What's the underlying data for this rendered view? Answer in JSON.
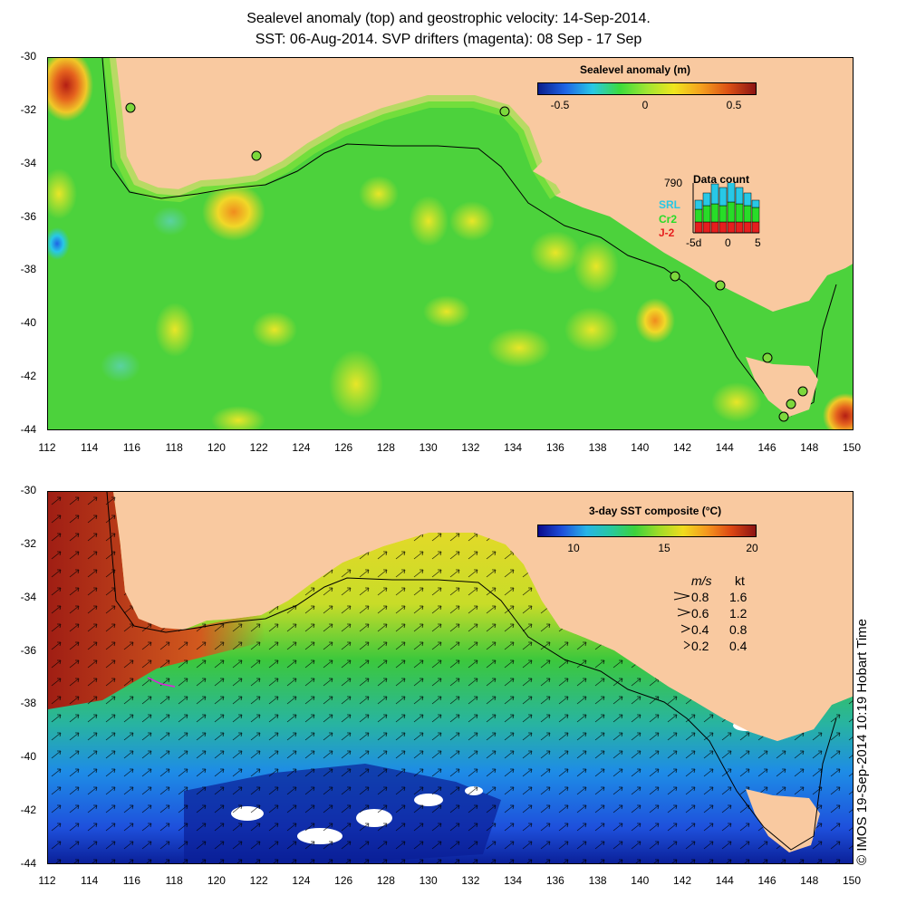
{
  "title": {
    "line1": "Sealevel anomaly (top) and geostrophic velocity: 14-Sep-2014.",
    "line2": "SST: 06-Aug-2014. SVP drifters (magenta): 08 Sep - 17 Sep"
  },
  "axes": {
    "y_ticks": [
      "-30",
      "-32",
      "-34",
      "-36",
      "-38",
      "-40",
      "-42",
      "-44"
    ],
    "x_ticks": [
      "112",
      "114",
      "116",
      "118",
      "120",
      "122",
      "124",
      "126",
      "128",
      "130",
      "132",
      "134",
      "136",
      "138",
      "140",
      "142",
      "144",
      "146",
      "148",
      "150"
    ]
  },
  "top_panel": {
    "colorbar_title": "Sealevel anomaly (m)",
    "colorbar_ticks": [
      "-0.5",
      "0",
      "0.5"
    ],
    "colors": [
      "#0a1e8c",
      "#1e64e6",
      "#28c8e6",
      "#3cdc3c",
      "#a0e632",
      "#f0e61e",
      "#f5a01e",
      "#dc5014",
      "#8c1414"
    ],
    "data_count": {
      "title": "Data count",
      "max": "790",
      "items": [
        {
          "label": "SRL",
          "color": "#28c8e6"
        },
        {
          "label": "Cr2",
          "color": "#28dc28"
        },
        {
          "label": "J-2",
          "color": "#e61e1e"
        }
      ],
      "x_ticks": [
        "-5d",
        "0",
        "5"
      ]
    }
  },
  "bottom_panel": {
    "colorbar_title": "3-day SST composite (°C)",
    "colorbar_ticks": [
      "10",
      "15",
      "20"
    ],
    "colors": [
      "#0a0a8c",
      "#1e50dc",
      "#28b4e6",
      "#28c8a0",
      "#3cd23c",
      "#a0dc28",
      "#f0dc1e",
      "#f5961e",
      "#dc4614",
      "#8c1414"
    ],
    "speed_legend": {
      "header_ms": "m/s",
      "header_kt": "kt",
      "rows": [
        {
          "ms": "0.8",
          "kt": "1.6"
        },
        {
          "ms": "0.6",
          "kt": "1.2"
        },
        {
          "ms": "0.4",
          "kt": "0.8"
        },
        {
          "ms": "0.2",
          "kt": "0.4"
        }
      ]
    },
    "credit": "© IMOS 19-Sep-2014 10:19 Hobart Time"
  }
}
